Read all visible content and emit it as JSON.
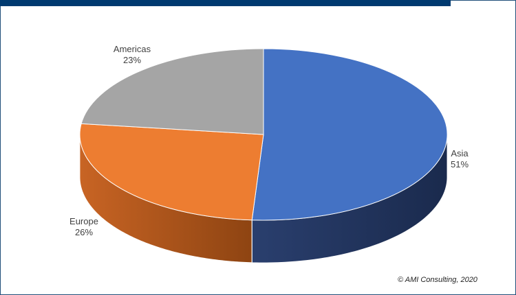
{
  "chart_data": {
    "type": "pie",
    "style": "3d",
    "title": "",
    "slices": [
      {
        "label": "Asia",
        "value": 51,
        "value_label": "51%",
        "color": "#4472c4"
      },
      {
        "label": "Europe",
        "value": 26,
        "value_label": "26%",
        "color": "#ed7d31"
      },
      {
        "label": "Americas",
        "value": 23,
        "value_label": "23%",
        "color": "#a5a5a5"
      }
    ],
    "legend": "none",
    "data_labels": "outside"
  },
  "copyright": "© AMI Consulting, 2020",
  "colors": {
    "frame": "#1f4e79",
    "top_bar": "#003a70"
  }
}
